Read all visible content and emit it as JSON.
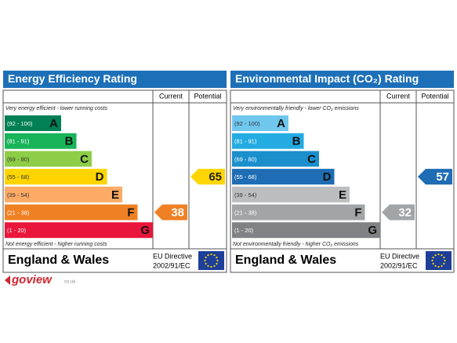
{
  "chart_data": [
    {
      "type": "rating",
      "title": "Energy Efficiency Rating",
      "title_color": "#1d70b8",
      "column_labels": [
        "Current",
        "Potential"
      ],
      "top_note": "Very energy efficient - lower running costs",
      "bottom_note": "Not energy efficient - higher running costs",
      "bands": [
        {
          "range": "(92 - 100)",
          "letter": "A",
          "color": "#008054"
        },
        {
          "range": "(81 - 91)",
          "letter": "B",
          "color": "#19b459"
        },
        {
          "range": "(69 - 80)",
          "letter": "C",
          "color": "#8dce46"
        },
        {
          "range": "(55 - 68)",
          "letter": "D",
          "color": "#ffd500"
        },
        {
          "range": "(39 - 54)",
          "letter": "E",
          "color": "#fcaa65"
        },
        {
          "range": "(21 - 38)",
          "letter": "F",
          "color": "#ef8023"
        },
        {
          "range": "(1 - 20)",
          "letter": "G",
          "color": "#e9153b"
        }
      ],
      "current": 38,
      "current_color": "#ef8023",
      "potential": 65,
      "potential_color": "#ffd500",
      "region": "England & Wales",
      "directive": [
        "EU Directive",
        "2002/91/EC"
      ]
    },
    {
      "type": "rating",
      "title": "Environmental Impact (CO₂) Rating",
      "title_color": "#1d70b8",
      "column_labels": [
        "Current",
        "Potential"
      ],
      "top_note": "Very environmentally friendly - lower CO₂ emissions",
      "bottom_note": "Not environmentally friendly - higher CO₂ emissions",
      "bands": [
        {
          "range": "(92 - 100)",
          "letter": "A",
          "color": "#6fc7ee"
        },
        {
          "range": "(81 - 91)",
          "letter": "B",
          "color": "#24abe2"
        },
        {
          "range": "(69 - 80)",
          "letter": "C",
          "color": "#1b8fcc"
        },
        {
          "range": "(55 - 68)",
          "letter": "D",
          "color": "#1f6db4"
        },
        {
          "range": "(39 - 54)",
          "letter": "E",
          "color": "#bbbdbf"
        },
        {
          "range": "(21 - 38)",
          "letter": "F",
          "color": "#a2a4a7"
        },
        {
          "range": "(1 - 20)",
          "letter": "G",
          "color": "#808285"
        }
      ],
      "current": 32,
      "current_color": "#a2a4a7",
      "potential": 57,
      "potential_color": "#1f6db4",
      "region": "England & Wales",
      "directive": [
        "EU Directive",
        "2002/91/EC"
      ]
    }
  ],
  "logo": {
    "text": "goview",
    "suffix": "co.uk"
  }
}
